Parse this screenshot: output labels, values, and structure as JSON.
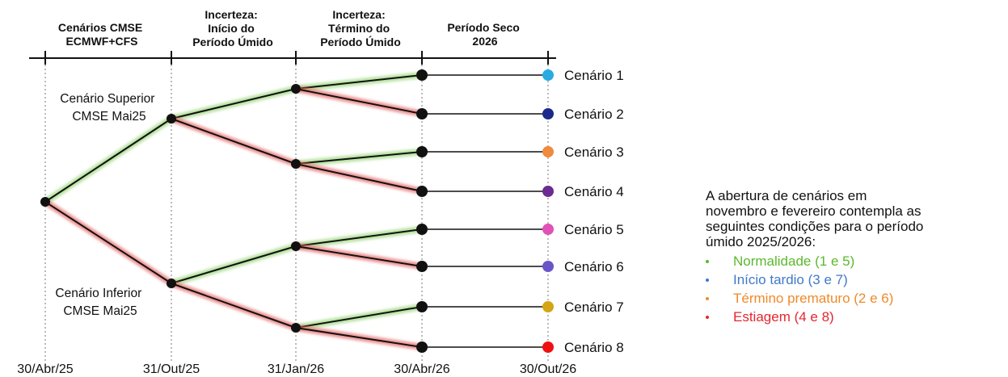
{
  "headers": [
    {
      "lines": [
        "Cenários CMSE",
        "ECMWF+CFS"
      ]
    },
    {
      "lines": [
        "Incerteza:",
        "Início do",
        "Período Úmido"
      ]
    },
    {
      "lines": [
        "Incerteza:",
        "Término do",
        "Período Úmido"
      ]
    },
    {
      "lines": [
        "Período Seco",
        "2026"
      ]
    }
  ],
  "dates": [
    "30/Abr/25",
    "31/Out/25",
    "31/Jan/26",
    "30/Abr/26",
    "30/Out/26"
  ],
  "scenarios": [
    {
      "label": "Cenário 1",
      "color": "#29abe2"
    },
    {
      "label": "Cenário 2",
      "color": "#1b2a8a"
    },
    {
      "label": "Cenário 3",
      "color": "#f08a3c"
    },
    {
      "label": "Cenário 4",
      "color": "#6a2c91"
    },
    {
      "label": "Cenário 5",
      "color": "#e052b8"
    },
    {
      "label": "Cenário 6",
      "color": "#6a55c8"
    },
    {
      "label": "Cenário 7",
      "color": "#d4a514"
    },
    {
      "label": "Cenário 8",
      "color": "#ee1111"
    }
  ],
  "path_labels": {
    "upper": [
      "Cenário Superior",
      "CMSE Mai25"
    ],
    "lower": [
      "Cenário Inferior",
      "CMSE Mai25"
    ]
  },
  "branch_colors": {
    "green": "#8fd16a",
    "red": "#e45a5a"
  },
  "legend": {
    "intro": [
      "A abertura de cenários em",
      "novembro e fevereiro contempla as",
      "seguintes condições para o período",
      "úmido 2025/2026:"
    ],
    "items": [
      {
        "text": "Normalidade (1 e 5)",
        "color": "#5cb82e"
      },
      {
        "text": "Início tardio (3 e 7)",
        "color": "#3f79c8"
      },
      {
        "text": "Término prematuro (2 e 6)",
        "color": "#ef8a2a"
      },
      {
        "text": "Estiagem (4 e 8)",
        "color": "#e5262e"
      }
    ]
  }
}
